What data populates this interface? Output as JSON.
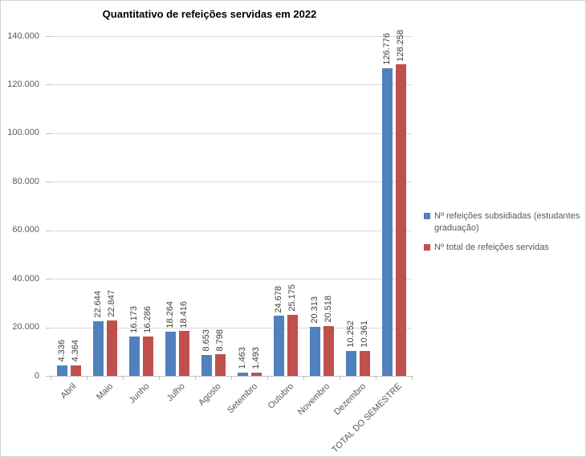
{
  "chart_data": {
    "type": "bar",
    "title": "Quantitativo de refeições servidas em 2022",
    "categories": [
      "Abril",
      "Maio",
      "Junho",
      "Julho",
      "Agosto",
      "Setembro",
      "Outubro",
      "Novembro",
      "Dezembro",
      "TOTAL DO SEMESTRE"
    ],
    "series": [
      {
        "name": "Nº refeições subsidiadas (estudantes graduação)",
        "color": "#4F81BD",
        "values": [
          4336,
          22644,
          16173,
          18264,
          8653,
          1463,
          24678,
          20313,
          10252,
          126776
        ],
        "labels": [
          "4.336",
          "22.644",
          "16.173",
          "18.264",
          "8.653",
          "1.463",
          "24.678",
          "20.313",
          "10.252",
          "126.776"
        ]
      },
      {
        "name": "Nº total de refeições servidas",
        "color": "#C0504D",
        "values": [
          4364,
          22847,
          16286,
          18416,
          8798,
          1493,
          25175,
          20518,
          10361,
          128258
        ],
        "labels": [
          "4.364",
          "22.847",
          "16.286",
          "18.416",
          "8.798",
          "1.493",
          "25.175",
          "20.518",
          "10.361",
          "128.258"
        ]
      }
    ],
    "ylim": [
      0,
      140000
    ],
    "y_tick_step": 20000,
    "y_tick_labels": [
      "0",
      "20.000",
      "40.000",
      "60.000",
      "80.000",
      "100.000",
      "120.000",
      "140.000"
    ],
    "grid": true,
    "legend_position": "right",
    "data_labels_rotation": 90,
    "x_labels_rotation": 45
  },
  "colors": {
    "series1": "#4F81BD",
    "series2": "#C0504D",
    "gridline": "#D9D9D9",
    "axis_line": "#BFBFBF",
    "axis_text": "#595959",
    "data_label_text": "#404040",
    "title_text": "#000000",
    "chart_border": "#D3D3D3",
    "background": "#FFFFFF"
  }
}
